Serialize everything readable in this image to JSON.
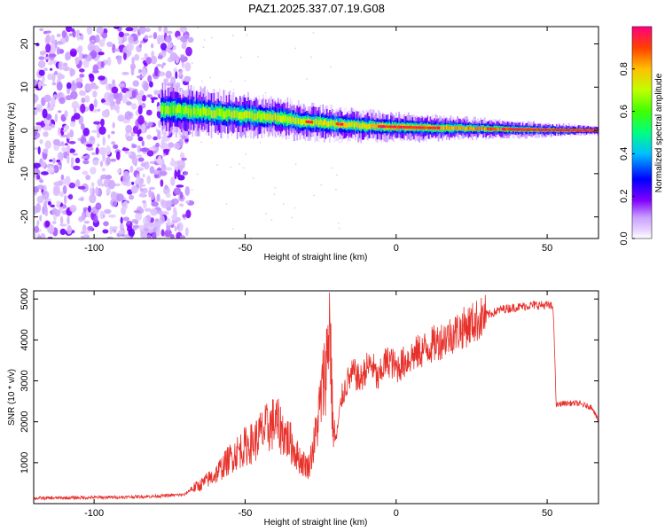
{
  "title": "PAZ1.2025.337.07.19.G08",
  "chart_data": [
    {
      "type": "heatmap",
      "name": "spectrogram",
      "xlabel": "Height of straight line (km)",
      "ylabel": "Frequency (Hz)",
      "xlim": [
        -120,
        67
      ],
      "ylim": [
        -25,
        24
      ],
      "xticks": [
        -100,
        -50,
        0,
        50
      ],
      "yticks": [
        -20,
        -10,
        0,
        10,
        20
      ],
      "xtick_labels": [
        "-100",
        "-50",
        "0",
        "50"
      ],
      "ytick_labels": [
        "-20",
        "-10",
        "0",
        "10",
        "20"
      ],
      "colorbar": {
        "label": "Normalized spectral amplitude",
        "range": [
          0,
          1
        ],
        "ticks": [
          0,
          0.2,
          0.4,
          0.6,
          0.8
        ],
        "tick_labels": [
          "0.0",
          "0.2",
          "0.4",
          "0.6",
          "0.8"
        ]
      },
      "noise_region_x": [
        -120,
        -68
      ],
      "ridge": [
        {
          "x": -78,
          "f": 5.0
        },
        {
          "x": -70,
          "f": 4.5
        },
        {
          "x": -60,
          "f": 4.0
        },
        {
          "x": -50,
          "f": 3.5
        },
        {
          "x": -40,
          "f": 3.0
        },
        {
          "x": -30,
          "f": 2.0
        },
        {
          "x": -20,
          "f": 1.5
        },
        {
          "x": -10,
          "f": 1.0
        },
        {
          "x": 0,
          "f": 0.8
        },
        {
          "x": 10,
          "f": 0.6
        },
        {
          "x": 20,
          "f": 0.5
        },
        {
          "x": 30,
          "f": 0.4
        },
        {
          "x": 40,
          "f": 0.2
        },
        {
          "x": 50,
          "f": 0.1
        },
        {
          "x": 67,
          "f": 0.0
        }
      ]
    },
    {
      "type": "line",
      "name": "snr",
      "xlabel": "Height of straight line (km)",
      "ylabel": "SNR (10 * v/v)",
      "xlim": [
        -120,
        67
      ],
      "ylim": [
        0,
        5200
      ],
      "xticks": [
        -100,
        -50,
        0,
        50
      ],
      "yticks": [
        1000,
        2000,
        3000,
        4000,
        5000
      ],
      "xtick_labels": [
        "-100",
        "-50",
        "0",
        "50"
      ],
      "ytick_labels": [
        "1000",
        "2000",
        "3000",
        "4000",
        "5000"
      ],
      "color": "#e8302a",
      "series": [
        {
          "name": "SNR",
          "x": [
            -120,
            -110,
            -100,
            -90,
            -80,
            -70,
            -68,
            -65,
            -60,
            -55,
            -52,
            -50,
            -47,
            -45,
            -40,
            -38,
            -35,
            -33,
            -31,
            -29,
            -27,
            -25,
            -23,
            -22,
            -21,
            -20,
            -18,
            -16,
            -14,
            -12,
            -10,
            -8,
            -6,
            -4,
            -2,
            0,
            5,
            10,
            15,
            20,
            25,
            30,
            35,
            40,
            45,
            50,
            52,
            53,
            55,
            60,
            65,
            67
          ],
          "y": [
            130,
            140,
            150,
            160,
            180,
            220,
            350,
            450,
            700,
            1100,
            1300,
            1400,
            1500,
            1700,
            2000,
            1800,
            1500,
            1200,
            1000,
            900,
            1500,
            2500,
            3500,
            4600,
            2000,
            1500,
            2600,
            3000,
            3200,
            3000,
            3300,
            3400,
            3000,
            3400,
            3500,
            3300,
            3600,
            3800,
            4000,
            4200,
            4400,
            4600,
            4750,
            4800,
            4850,
            4850,
            4800,
            2400,
            2450,
            2450,
            2350,
            2000
          ]
        }
      ]
    }
  ]
}
